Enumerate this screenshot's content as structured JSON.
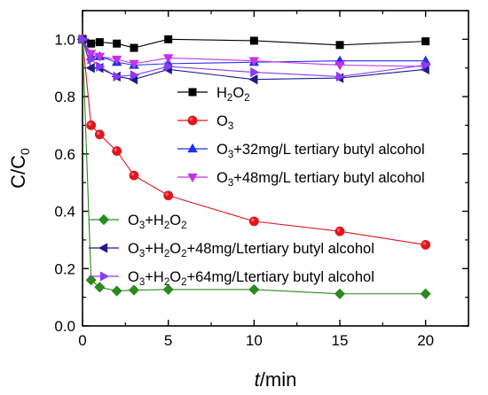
{
  "chart_data": {
    "type": "line",
    "xlabel": {
      "italic": "t",
      "rest": "/min"
    },
    "ylabel": {
      "main": "C/C",
      "sub": "0"
    },
    "xlim": [
      0,
      22.5
    ],
    "ylim": [
      0,
      1.1
    ],
    "xticks": [
      0,
      5,
      10,
      15,
      20
    ],
    "yticks": [
      0.0,
      0.2,
      0.4,
      0.6,
      0.8,
      1.0
    ],
    "grid": false,
    "series": [
      {
        "name": "H2O2",
        "label_parts": [
          [
            "H",
            ""
          ],
          [
            "2",
            "sub"
          ],
          [
            "O",
            ""
          ],
          [
            "2",
            "sub"
          ]
        ],
        "color": "#000000",
        "marker": "square",
        "x": [
          0,
          0.5,
          1,
          2,
          3,
          5,
          10,
          15,
          20
        ],
        "y": [
          1.0,
          0.985,
          0.99,
          0.985,
          0.97,
          1.0,
          0.995,
          0.98,
          0.993
        ]
      },
      {
        "name": "O3",
        "label_parts": [
          [
            "O",
            ""
          ],
          [
            "3",
            "sub"
          ]
        ],
        "color": "#e0161e",
        "marker": "circle",
        "x": [
          0,
          0.5,
          1,
          2,
          3,
          5,
          10,
          15,
          20
        ],
        "y": [
          1.0,
          0.7,
          0.668,
          0.61,
          0.525,
          0.455,
          0.365,
          0.33,
          0.283
        ]
      },
      {
        "name": "O3+32mg/L tertiary butyl alcohol",
        "label_parts": [
          [
            "O",
            ""
          ],
          [
            "3",
            "sub"
          ],
          [
            "+32mg/L tertiary butyl alcohol",
            ""
          ]
        ],
        "color": "#1f2ff0",
        "marker": "triangle-up",
        "x": [
          0,
          0.5,
          1,
          2,
          3,
          5,
          10,
          15,
          20
        ],
        "y": [
          1.0,
          0.94,
          0.94,
          0.92,
          0.91,
          0.915,
          0.92,
          0.925,
          0.925
        ]
      },
      {
        "name": "O3+48mg/L tertiary butyl alcohol",
        "label_parts": [
          [
            "O",
            ""
          ],
          [
            "3",
            "sub"
          ],
          [
            "+48mg/L tertiary butyl alcohol",
            ""
          ]
        ],
        "color": "#c431e6",
        "marker": "triangle-down",
        "x": [
          0,
          0.5,
          1,
          2,
          3,
          5,
          10,
          15,
          20
        ],
        "y": [
          1.0,
          0.95,
          0.94,
          0.93,
          0.915,
          0.935,
          0.925,
          0.91,
          0.905
        ]
      },
      {
        "name": "O3+H2O2",
        "label_parts": [
          [
            "O",
            ""
          ],
          [
            "3",
            "sub"
          ],
          [
            "+H",
            ""
          ],
          [
            "2",
            "sub"
          ],
          [
            "O",
            ""
          ],
          [
            "2",
            "sub"
          ]
        ],
        "color": "#2a8a1e",
        "marker": "diamond",
        "x": [
          0,
          0.5,
          1,
          2,
          3,
          5,
          10,
          15,
          20
        ],
        "y": [
          1.0,
          0.16,
          0.135,
          0.122,
          0.125,
          0.127,
          0.127,
          0.112,
          0.112
        ]
      },
      {
        "name": "O3+H2O2+48mg/Ltertiary butyl alcohol",
        "label_parts": [
          [
            "O",
            ""
          ],
          [
            "3",
            "sub"
          ],
          [
            "+H",
            ""
          ],
          [
            "2",
            "sub"
          ],
          [
            "O",
            ""
          ],
          [
            "2",
            "sub"
          ],
          [
            "+48mg/Ltertiary butyl alcohol",
            ""
          ]
        ],
        "color": "#1d1a8c",
        "marker": "triangle-left",
        "x": [
          0,
          0.5,
          1,
          2,
          3,
          5,
          10,
          15,
          20
        ],
        "y": [
          1.0,
          0.9,
          0.9,
          0.87,
          0.86,
          0.895,
          0.86,
          0.865,
          0.895
        ]
      },
      {
        "name": "O3+H2O2+64mg/Ltertiary butyl alcohol",
        "label_parts": [
          [
            "O",
            ""
          ],
          [
            "3",
            "sub"
          ],
          [
            "+H",
            ""
          ],
          [
            "2",
            "sub"
          ],
          [
            "O",
            ""
          ],
          [
            "2",
            "sub"
          ],
          [
            "+64mg/Ltertiary butyl alcohol",
            ""
          ]
        ],
        "color": "#8b3bf2",
        "marker": "triangle-right",
        "x": [
          0,
          0.5,
          1,
          2,
          3,
          5,
          10,
          15,
          20
        ],
        "y": [
          1.0,
          0.93,
          0.905,
          0.87,
          0.875,
          0.905,
          0.885,
          0.87,
          0.91
        ]
      }
    ],
    "legend_groups": [
      [
        0,
        1,
        2,
        3
      ],
      [
        4,
        5,
        6
      ]
    ]
  }
}
